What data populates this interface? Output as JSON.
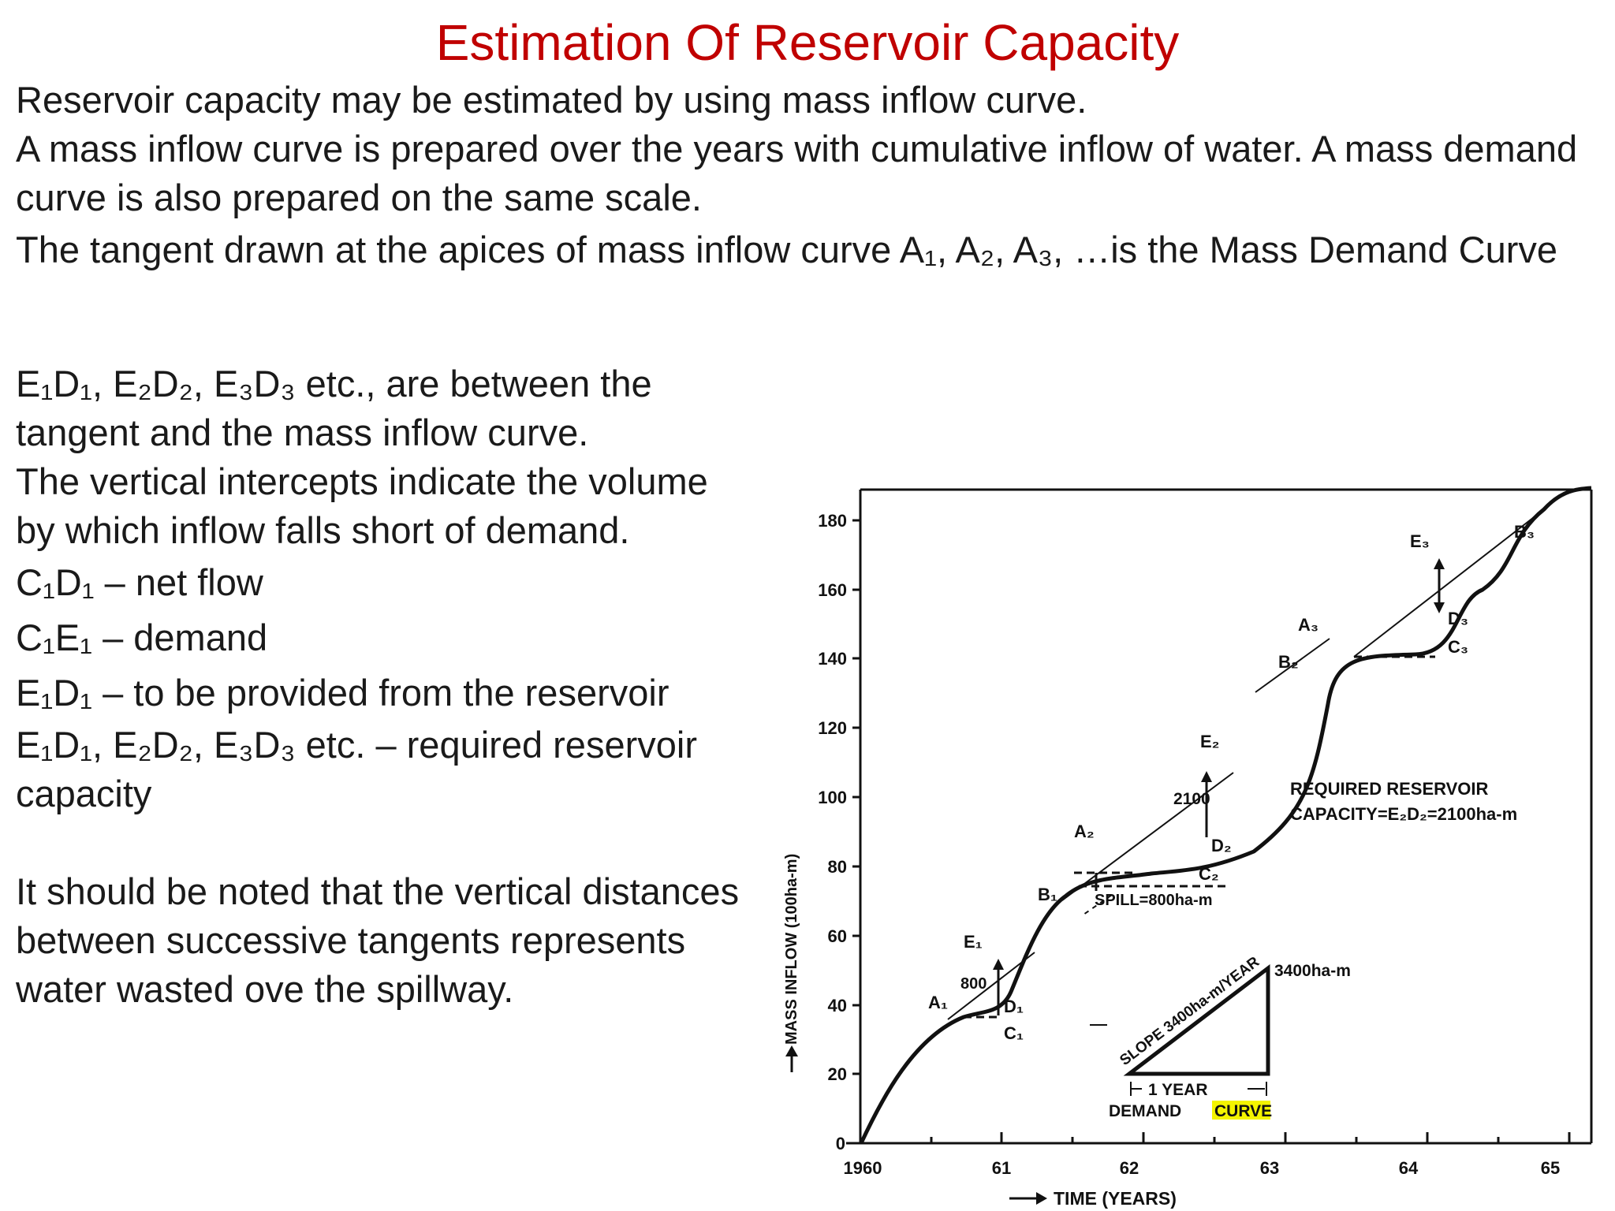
{
  "title": "Estimation Of Reservoir Capacity",
  "intro": {
    "line1": "Reservoir capacity may be estimated  by using mass inflow curve.",
    "line2": "A mass inflow curve is prepared over the years with cumulative inflow of water. A mass demand curve is also prepared on the same scale.",
    "line3": "The tangent drawn at the apices of mass inflow curve A₁, A₂, A₃, …is the Mass Demand Curve"
  },
  "body": {
    "p1": "E₁D₁, E₂D₂, E₃D₃ etc., are between the tangent and the mass inflow curve.",
    "p2": "The vertical intercepts indicate the volume by which inflow falls short of demand.",
    "p3": "C₁D₁ – net flow",
    "p4": "C₁E₁ – demand",
    "p5": "E₁D₁  – to be provided from the reservoir",
    "p6": "E₁D₁, E₂D₂, E₃D₃ etc. – required reservoir capacity",
    "p7": "It should be noted that the vertical distances between successive tangents represents water wasted ove the spillway."
  },
  "diagram": {
    "y_axis_label": "MASS INFLOW (100ha-m)",
    "x_axis_label": "TIME (YEARS)",
    "y_ticks": [
      "0",
      "20",
      "40",
      "60",
      "80",
      "100",
      "120",
      "140",
      "160",
      "180"
    ],
    "x_ticks": [
      "1960",
      "61",
      "62",
      "63",
      "64",
      "65"
    ],
    "points": {
      "A1": "A₁",
      "B1": "B₁",
      "C1": "C₁",
      "D1": "D₁",
      "E1": "E₁",
      "A2": "A₂",
      "B2": "B₂",
      "C2": "C₂",
      "D2": "D₂",
      "E2": "E₂",
      "A3": "A₃",
      "B3": "B₃",
      "C3": "C₃",
      "D3": "D₃",
      "E3": "E₃"
    },
    "annotations": {
      "e1d1_value": "800",
      "e2d2_value": "2100",
      "spill": "SPILL=800ha-m",
      "required_line1": "REQUIRED RESERVOIR",
      "required_line2": "CAPACITY=E₂D₂=2100ha-m",
      "slope": "SLOPE 3400ha-m/YEAR",
      "triangle_rise": "3400ha-m",
      "one_year": "1 YEAR",
      "demand": "DEMAND",
      "curve": "CURVE"
    },
    "colors": {
      "title": "#c00000",
      "highlight": "#f4f400"
    }
  }
}
